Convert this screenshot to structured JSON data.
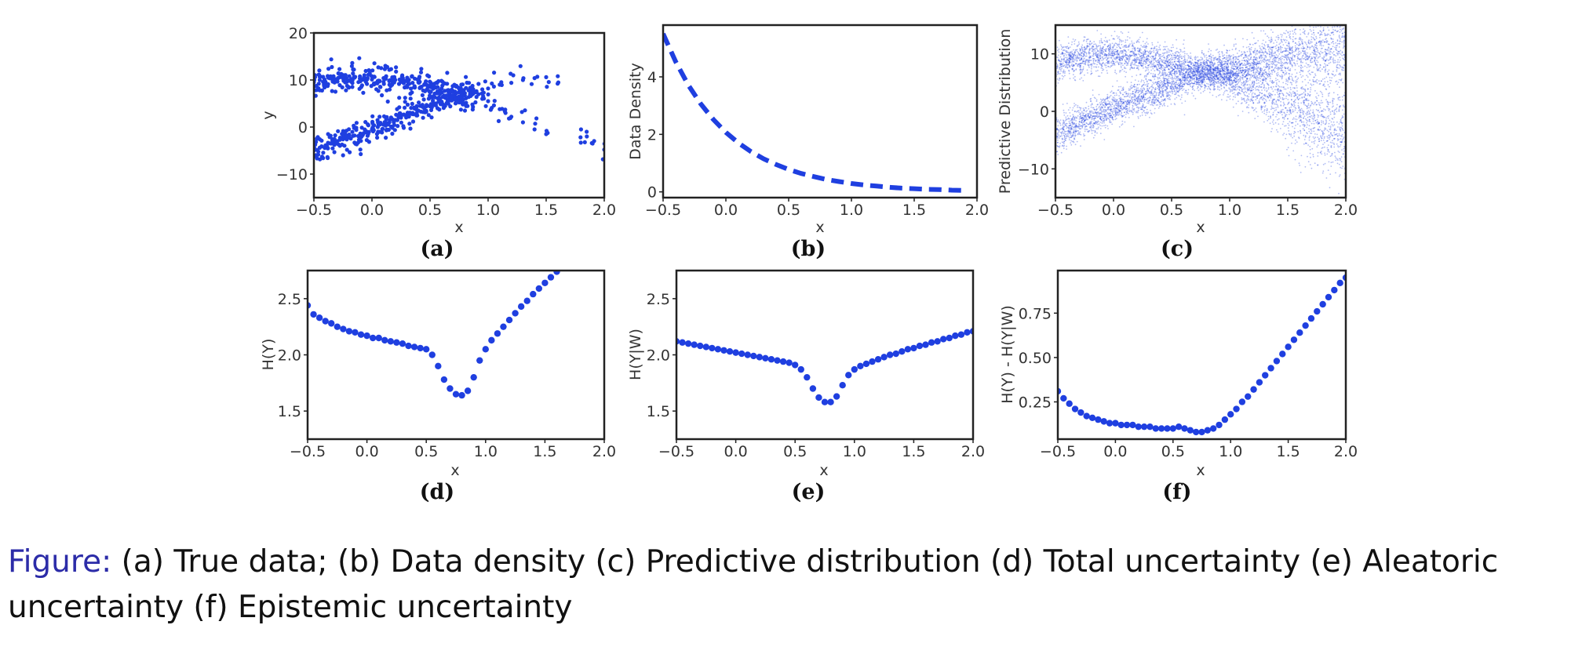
{
  "chart_data": [
    {
      "panel_label": "(a)",
      "type": "scatter",
      "xlabel": "x",
      "ylabel": "y",
      "xlim": [
        -0.5,
        2.0
      ],
      "ylim": [
        -15,
        20
      ],
      "xticks": [
        "−0.5",
        "0.0",
        "0.5",
        "1.0",
        "1.5",
        "2.0"
      ],
      "xtick_values": [
        -0.5,
        0.0,
        0.5,
        1.0,
        1.5,
        2.0
      ],
      "yticks": [
        "−10",
        "0",
        "10",
        "20"
      ],
      "ytick_values": [
        -10,
        0,
        10,
        20
      ],
      "color": "#1f3fe0",
      "series": [
        {
          "x": [
            -0.5,
            -0.45,
            -0.4,
            -0.35,
            -0.3,
            -0.25,
            -0.2,
            -0.15,
            -0.1,
            -0.05,
            0.0,
            0.05,
            0.1,
            0.15,
            0.2,
            0.25,
            0.3,
            0.35,
            0.4,
            0.45,
            0.5,
            0.55,
            0.6,
            0.65,
            0.7,
            0.75,
            0.8,
            0.85,
            0.9,
            0.95,
            1.0,
            1.05,
            1.1,
            1.2,
            1.3,
            1.4,
            1.5,
            1.6
          ],
          "y": [
            9.5,
            10.0,
            9.6,
            10.3,
            9.8,
            10.4,
            9.9,
            10.5,
            10.0,
            10.3,
            10.1,
            9.8,
            10.4,
            9.9,
            10.0,
            9.6,
            9.8,
            9.4,
            9.5,
            9.0,
            8.8,
            8.4,
            8.2,
            7.8,
            7.6,
            7.4,
            7.2,
            7.3,
            7.6,
            8.0,
            8.2,
            8.6,
            9.0,
            9.4,
            10.0,
            10.4,
            10.6,
            10.8
          ]
        },
        {
          "x": [
            -0.5,
            -0.45,
            -0.4,
            -0.35,
            -0.3,
            -0.25,
            -0.2,
            -0.15,
            -0.1,
            -0.05,
            0.0,
            0.05,
            0.1,
            0.15,
            0.2,
            0.25,
            0.3,
            0.35,
            0.4,
            0.45,
            0.5,
            0.55,
            0.6,
            0.65,
            0.7,
            0.75,
            0.8,
            0.85,
            0.9,
            0.95,
            1.0,
            1.05,
            1.1,
            1.15,
            1.2,
            1.3,
            1.4,
            1.5,
            1.8,
            1.85,
            1.9,
            2.0
          ],
          "y": [
            -5.0,
            -4.4,
            -3.9,
            -3.5,
            -3.0,
            -2.6,
            -2.2,
            -1.8,
            -1.4,
            -0.9,
            -0.5,
            0.0,
            0.5,
            1.0,
            1.5,
            2.0,
            2.5,
            3.0,
            3.5,
            4.0,
            4.5,
            5.0,
            5.4,
            5.8,
            6.2,
            6.5,
            6.7,
            6.6,
            6.4,
            6.0,
            5.5,
            4.6,
            3.8,
            3.0,
            2.2,
            1.0,
            -0.5,
            -1.5,
            -0.5,
            -2.0,
            -3.5,
            -4.8
          ]
        }
      ]
    },
    {
      "panel_label": "(b)",
      "type": "line",
      "xlabel": "x",
      "ylabel": "Data Density",
      "xlim": [
        -0.5,
        2.0
      ],
      "ylim": [
        -0.2,
        5.8
      ],
      "xticks": [
        "−0.5",
        "0.0",
        "0.5",
        "1.0",
        "1.5",
        "2.0"
      ],
      "xtick_values": [
        -0.5,
        0.0,
        0.5,
        1.0,
        1.5,
        2.0
      ],
      "yticks": [
        "0",
        "2",
        "4"
      ],
      "ytick_values": [
        0,
        2,
        4
      ],
      "color": "#1f3fe0",
      "line_style": "dashed",
      "x": [
        -0.5,
        -0.4,
        -0.3,
        -0.2,
        -0.1,
        0.0,
        0.1,
        0.2,
        0.3,
        0.4,
        0.5,
        0.6,
        0.7,
        0.8,
        0.9,
        1.0,
        1.1,
        1.2,
        1.3,
        1.4,
        1.5,
        1.6,
        1.7,
        1.8,
        1.9
      ],
      "y": [
        5.5,
        4.53,
        3.72,
        3.06,
        2.52,
        2.07,
        1.7,
        1.4,
        1.15,
        0.95,
        0.78,
        0.64,
        0.53,
        0.43,
        0.36,
        0.29,
        0.24,
        0.2,
        0.16,
        0.13,
        0.11,
        0.09,
        0.08,
        0.06,
        0.05
      ]
    },
    {
      "panel_label": "(c)",
      "type": "scatter",
      "xlabel": "x",
      "ylabel": "Predictive Distribution",
      "xlim": [
        -0.5,
        2.0
      ],
      "ylim": [
        -15,
        15
      ],
      "xticks": [
        "−0.5",
        "0.0",
        "0.5",
        "1.0",
        "1.5",
        "2.0"
      ],
      "xtick_values": [
        -0.5,
        0.0,
        0.5,
        1.0,
        1.5,
        2.0
      ],
      "yticks": [
        "−10",
        "0",
        "10"
      ],
      "ytick_values": [
        -10,
        0,
        10
      ],
      "color": "#1f3fe0",
      "series": [
        {
          "x": [
            -0.5,
            -0.25,
            0.0,
            0.25,
            0.5,
            0.75,
            1.0,
            1.25,
            1.5,
            1.75,
            2.0
          ],
          "y": [
            8.5,
            9.5,
            10.0,
            9.3,
            8.2,
            7.0,
            7.5,
            8.5,
            9.5,
            10.5,
            11.5
          ],
          "spread": [
            1.5,
            1.5,
            1.5,
            1.5,
            1.5,
            1.3,
            1.6,
            2.0,
            2.4,
            2.8,
            3.0
          ]
        },
        {
          "x": [
            -0.5,
            -0.25,
            0.0,
            0.25,
            0.5,
            0.75,
            1.0,
            1.25,
            1.5,
            1.75,
            2.0
          ],
          "y": [
            -4.0,
            -1.5,
            0.5,
            2.5,
            4.5,
            6.5,
            6.0,
            4.0,
            1.5,
            -1.0,
            -3.5
          ],
          "spread": [
            1.5,
            1.5,
            1.5,
            1.5,
            1.5,
            1.3,
            1.8,
            2.6,
            3.4,
            4.2,
            5.0
          ]
        }
      ]
    },
    {
      "panel_label": "(d)",
      "type": "scatter",
      "xlabel": "x",
      "ylabel": "H(Y)",
      "xlim": [
        -0.5,
        2.0
      ],
      "ylim": [
        1.25,
        2.75
      ],
      "xticks": [
        "−0.5",
        "0.0",
        "0.5",
        "1.0",
        "1.5",
        "2.0"
      ],
      "xtick_values": [
        -0.5,
        0.0,
        0.5,
        1.0,
        1.5,
        2.0
      ],
      "yticks": [
        "1.5",
        "2.0",
        "2.5"
      ],
      "ytick_values": [
        1.5,
        2.0,
        2.5
      ],
      "color": "#1f3fe0",
      "x": [
        -0.5,
        -0.45,
        -0.4,
        -0.35,
        -0.3,
        -0.25,
        -0.2,
        -0.15,
        -0.1,
        -0.05,
        0.0,
        0.05,
        0.1,
        0.15,
        0.2,
        0.25,
        0.3,
        0.35,
        0.4,
        0.45,
        0.5,
        0.55,
        0.6,
        0.65,
        0.7,
        0.75,
        0.8,
        0.85,
        0.9,
        0.95,
        1.0,
        1.05,
        1.1,
        1.15,
        1.2,
        1.25,
        1.3,
        1.35,
        1.4,
        1.45,
        1.5,
        1.55,
        1.6
      ],
      "y": [
        2.44,
        2.36,
        2.33,
        2.3,
        2.28,
        2.25,
        2.23,
        2.21,
        2.2,
        2.18,
        2.17,
        2.15,
        2.15,
        2.13,
        2.12,
        2.11,
        2.1,
        2.08,
        2.07,
        2.06,
        2.05,
        2.0,
        1.9,
        1.78,
        1.7,
        1.65,
        1.64,
        1.68,
        1.8,
        1.95,
        2.05,
        2.13,
        2.19,
        2.25,
        2.31,
        2.37,
        2.43,
        2.48,
        2.54,
        2.59,
        2.64,
        2.69,
        2.74
      ]
    },
    {
      "panel_label": "(e)",
      "type": "scatter",
      "xlabel": "x",
      "ylabel": "H(Y|W)",
      "xlim": [
        -0.5,
        2.0
      ],
      "ylim": [
        1.25,
        2.75
      ],
      "xticks": [
        "−0.5",
        "0.0",
        "0.5",
        "1.0",
        "1.5",
        "2.0"
      ],
      "xtick_values": [
        -0.5,
        0.0,
        0.5,
        1.0,
        1.5,
        2.0
      ],
      "yticks": [
        "1.5",
        "2.0",
        "2.5"
      ],
      "ytick_values": [
        1.5,
        2.0,
        2.5
      ],
      "color": "#1f3fe0",
      "x": [
        -0.5,
        -0.45,
        -0.4,
        -0.35,
        -0.3,
        -0.25,
        -0.2,
        -0.15,
        -0.1,
        -0.05,
        0.0,
        0.05,
        0.1,
        0.15,
        0.2,
        0.25,
        0.3,
        0.35,
        0.4,
        0.45,
        0.5,
        0.55,
        0.6,
        0.65,
        0.7,
        0.75,
        0.8,
        0.85,
        0.9,
        0.95,
        1.0,
        1.05,
        1.1,
        1.15,
        1.2,
        1.25,
        1.3,
        1.35,
        1.4,
        1.45,
        1.5,
        1.55,
        1.6,
        1.65,
        1.7,
        1.75,
        1.8,
        1.85,
        1.9,
        1.95,
        2.0
      ],
      "y": [
        2.12,
        2.11,
        2.1,
        2.09,
        2.08,
        2.07,
        2.06,
        2.05,
        2.04,
        2.03,
        2.02,
        2.01,
        2.0,
        1.99,
        1.98,
        1.97,
        1.96,
        1.95,
        1.94,
        1.93,
        1.91,
        1.87,
        1.8,
        1.7,
        1.62,
        1.58,
        1.58,
        1.63,
        1.73,
        1.82,
        1.87,
        1.9,
        1.92,
        1.94,
        1.96,
        1.98,
        2.0,
        2.01,
        2.03,
        2.05,
        2.06,
        2.08,
        2.09,
        2.11,
        2.12,
        2.14,
        2.15,
        2.17,
        2.18,
        2.2,
        2.21
      ]
    },
    {
      "panel_label": "(f)",
      "type": "scatter",
      "xlabel": "x",
      "ylabel": "H(Y) - H(Y|W)",
      "xlim": [
        -0.5,
        2.0
      ],
      "ylim": [
        0.04,
        0.99
      ],
      "xticks": [
        "−0.5",
        "0.0",
        "0.5",
        "1.0",
        "1.5",
        "2.0"
      ],
      "xtick_values": [
        -0.5,
        0.0,
        0.5,
        1.0,
        1.5,
        2.0
      ],
      "yticks": [
        "0.25",
        "0.50",
        "0.75"
      ],
      "ytick_values": [
        0.25,
        0.5,
        0.75
      ],
      "color": "#1f3fe0",
      "x": [
        -0.5,
        -0.45,
        -0.4,
        -0.35,
        -0.3,
        -0.25,
        -0.2,
        -0.15,
        -0.1,
        -0.05,
        0.0,
        0.05,
        0.1,
        0.15,
        0.2,
        0.25,
        0.3,
        0.35,
        0.4,
        0.45,
        0.5,
        0.55,
        0.6,
        0.65,
        0.7,
        0.75,
        0.8,
        0.85,
        0.9,
        0.95,
        1.0,
        1.05,
        1.1,
        1.15,
        1.2,
        1.25,
        1.3,
        1.35,
        1.4,
        1.45,
        1.5,
        1.55,
        1.6,
        1.65,
        1.7,
        1.75,
        1.8,
        1.85,
        1.9,
        1.95,
        2.0
      ],
      "y": [
        0.31,
        0.27,
        0.24,
        0.21,
        0.19,
        0.17,
        0.16,
        0.15,
        0.14,
        0.13,
        0.13,
        0.12,
        0.12,
        0.12,
        0.11,
        0.11,
        0.11,
        0.1,
        0.1,
        0.1,
        0.1,
        0.11,
        0.1,
        0.09,
        0.08,
        0.08,
        0.09,
        0.1,
        0.12,
        0.15,
        0.18,
        0.21,
        0.25,
        0.28,
        0.32,
        0.36,
        0.4,
        0.44,
        0.48,
        0.52,
        0.56,
        0.6,
        0.64,
        0.68,
        0.72,
        0.76,
        0.8,
        0.84,
        0.88,
        0.92,
        0.95
      ]
    }
  ],
  "caption": {
    "prefix": "Figure:",
    "text": " (a) True data; (b) Data density (c) Predictive distribution (d) Total uncertainty (e) Aleatoric uncertainty (f) Epistemic uncertainty"
  }
}
